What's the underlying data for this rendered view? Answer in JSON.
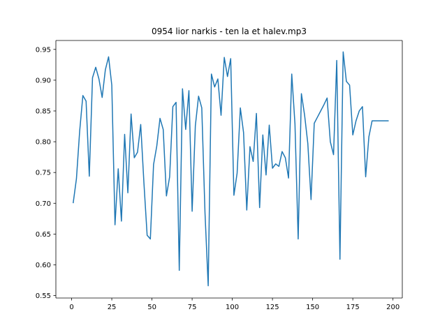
{
  "chart_data": {
    "type": "line",
    "title": "0954 lior narkis - ten la et halev.mp3",
    "xlabel": "",
    "ylabel": "",
    "xlim": [
      -9.8,
      205.8
    ],
    "ylim": [
      0.5461,
      0.9645
    ],
    "xticks": [
      0,
      25,
      50,
      75,
      100,
      125,
      150,
      175,
      200
    ],
    "yticks": [
      0.55,
      0.6,
      0.65,
      0.7,
      0.75,
      0.8,
      0.85,
      0.9,
      0.95
    ],
    "xtick_labels": [
      "0",
      "25",
      "50",
      "75",
      "100",
      "125",
      "150",
      "175",
      "200"
    ],
    "ytick_labels": [
      "0.55",
      "0.60",
      "0.65",
      "0.70",
      "0.75",
      "0.80",
      "0.85",
      "0.90",
      "0.95"
    ],
    "grid": false,
    "series": [
      {
        "color": "#1f77b4",
        "x": [
          1,
          3,
          5,
          7,
          9,
          11,
          13,
          15,
          17,
          19,
          21,
          23,
          25,
          27,
          29,
          31,
          33,
          35,
          37,
          39,
          41,
          43,
          45,
          47,
          49,
          51,
          53,
          55,
          57,
          59,
          61,
          63,
          65,
          67,
          69,
          71,
          73,
          75,
          77,
          79,
          81,
          83,
          85,
          87,
          89,
          91,
          93,
          95,
          97,
          99,
          101,
          103,
          105,
          107,
          109,
          111,
          113,
          115,
          117,
          119,
          121,
          123,
          125,
          127,
          129,
          131,
          133,
          135,
          137,
          139,
          141,
          143,
          145,
          147,
          149,
          151,
          153,
          155,
          157,
          159,
          161,
          163,
          165,
          167,
          169,
          171,
          173,
          175,
          177,
          179,
          181,
          183,
          185,
          187,
          189,
          191,
          193,
          195,
          197
        ],
        "y": [
          0.701,
          0.74,
          0.817,
          0.875,
          0.866,
          0.744,
          0.904,
          0.921,
          0.902,
          0.872,
          0.917,
          0.938,
          0.892,
          0.665,
          0.756,
          0.671,
          0.812,
          0.717,
          0.845,
          0.774,
          0.783,
          0.828,
          0.733,
          0.648,
          0.642,
          0.763,
          0.793,
          0.838,
          0.82,
          0.712,
          0.743,
          0.857,
          0.864,
          0.591,
          0.886,
          0.82,
          0.883,
          0.687,
          0.826,
          0.874,
          0.855,
          0.685,
          0.566,
          0.91,
          0.889,
          0.902,
          0.843,
          0.937,
          0.906,
          0.935,
          0.713,
          0.749,
          0.855,
          0.815,
          0.689,
          0.792,
          0.768,
          0.846,
          0.693,
          0.811,
          0.746,
          0.827,
          0.757,
          0.764,
          0.76,
          0.784,
          0.774,
          0.741,
          0.91,
          0.829,
          0.642,
          0.878,
          0.843,
          0.797,
          0.706,
          0.83,
          0.84,
          0.85,
          0.86,
          0.871,
          0.8,
          0.779,
          0.932,
          0.609,
          0.946,
          0.898,
          0.892,
          0.811,
          0.834,
          0.85,
          0.857,
          0.743,
          0.808,
          0.834,
          0.834,
          0.834,
          0.834,
          0.834,
          0.834
        ]
      }
    ]
  }
}
